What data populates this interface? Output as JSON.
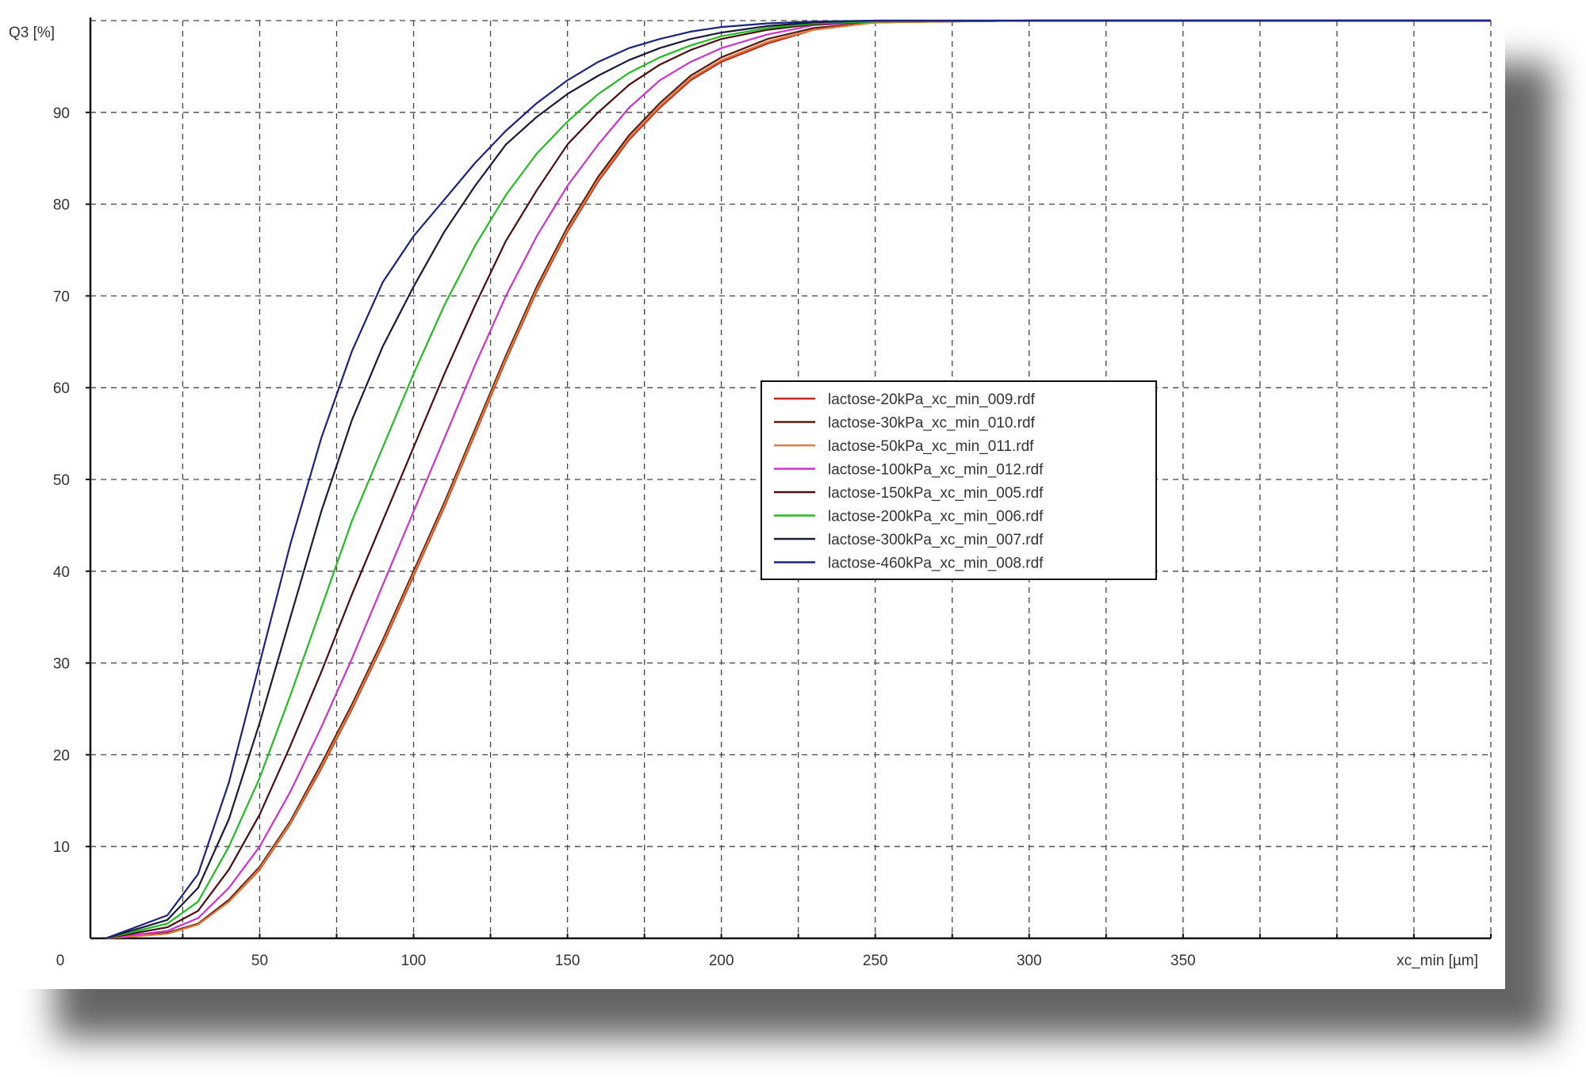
{
  "chart_data": {
    "type": "line",
    "title": "",
    "xlabel": "xc_min [µm]",
    "ylabel": "Q3 [%]",
    "xlim": [
      -5,
      450
    ],
    "ylim": [
      0,
      100
    ],
    "x_ticks": [
      0,
      50,
      100,
      150,
      200,
      250,
      300,
      350
    ],
    "x_tick_labels": [
      "0",
      "50",
      "100",
      "150",
      "200",
      "250",
      "300",
      "350"
    ],
    "y_ticks": [
      10,
      20,
      30,
      40,
      50,
      60,
      70,
      80,
      90
    ],
    "y_tick_labels": [
      "10",
      "20",
      "30",
      "40",
      "50",
      "60",
      "70",
      "80",
      "90"
    ],
    "x_gridlines": [
      25,
      50,
      75,
      100,
      125,
      150,
      175,
      200,
      225,
      250,
      275,
      300,
      325,
      350,
      375,
      400,
      425,
      450
    ],
    "grid": true,
    "legend_position": "center-right",
    "series": [
      {
        "name": "lactose-20kPa_xc_min_009.rdf",
        "color": "#c0281c",
        "x": [
          0,
          20,
          30,
          40,
          50,
          60,
          70,
          80,
          90,
          100,
          110,
          120,
          130,
          140,
          150,
          160,
          170,
          180,
          190,
          200,
          215,
          230,
          250,
          300,
          450
        ],
        "y": [
          0,
          0.5,
          1.5,
          4,
          7.5,
          12.5,
          18.5,
          25,
          32,
          39.5,
          47,
          55,
          63,
          70.5,
          77,
          82.5,
          87,
          90.5,
          93.5,
          95.5,
          97.5,
          99,
          99.8,
          100,
          100
        ]
      },
      {
        "name": "lactose-30kPa_xc_min_010.rdf",
        "color": "#5a1a0e",
        "x": [
          0,
          20,
          30,
          40,
          50,
          60,
          70,
          80,
          90,
          100,
          110,
          120,
          130,
          140,
          150,
          160,
          170,
          180,
          190,
          200,
          215,
          230,
          250,
          300,
          450
        ],
        "y": [
          0,
          0.6,
          1.6,
          4.2,
          7.8,
          12.8,
          19,
          25.5,
          32.5,
          40,
          47.5,
          55.5,
          63.5,
          71,
          77.5,
          83,
          87.5,
          91,
          94,
          96,
          98,
          99.2,
          99.8,
          100,
          100
        ]
      },
      {
        "name": "lactose-50kPa_xc_min_011.rdf",
        "color": "#e07a3a",
        "x": [
          0,
          20,
          30,
          40,
          50,
          60,
          70,
          80,
          90,
          100,
          110,
          120,
          130,
          140,
          150,
          160,
          170,
          180,
          190,
          200,
          215,
          230,
          250,
          300,
          450
        ],
        "y": [
          0,
          0.5,
          1.5,
          4,
          7.6,
          12.6,
          18.7,
          25.2,
          32.2,
          39.7,
          47.2,
          55.2,
          63.2,
          70.7,
          77.2,
          82.7,
          87.2,
          90.7,
          93.7,
          95.7,
          97.7,
          99,
          99.8,
          100,
          100
        ]
      },
      {
        "name": "lactose-100kPa_xc_min_012.rdf",
        "color": "#cc33cc",
        "x": [
          0,
          20,
          30,
          40,
          50,
          60,
          70,
          80,
          90,
          100,
          110,
          120,
          130,
          140,
          150,
          160,
          170,
          180,
          190,
          200,
          215,
          230,
          250,
          300,
          450
        ],
        "y": [
          0,
          0.8,
          2.2,
          5.5,
          10,
          16,
          23,
          30.5,
          38.5,
          46.5,
          54.5,
          62.5,
          70,
          76.5,
          82,
          86.5,
          90.5,
          93.5,
          95.5,
          97,
          98.5,
          99.5,
          99.9,
          100,
          100
        ]
      },
      {
        "name": "lactose-150kPa_xc_min_005.rdf",
        "color": "#4a0e0e",
        "x": [
          0,
          20,
          30,
          40,
          50,
          60,
          70,
          80,
          90,
          100,
          110,
          120,
          130,
          140,
          150,
          160,
          170,
          180,
          190,
          200,
          215,
          230,
          250,
          300,
          450
        ],
        "y": [
          0,
          1.2,
          3,
          7.5,
          13.5,
          21,
          29,
          37.5,
          45.5,
          53.5,
          61.5,
          69,
          76,
          81.5,
          86.5,
          90,
          93,
          95.2,
          96.8,
          98,
          99,
          99.6,
          99.9,
          100,
          100
        ]
      },
      {
        "name": "lactose-200kPa_xc_min_006.rdf",
        "color": "#22bb22",
        "x": [
          0,
          20,
          30,
          40,
          50,
          60,
          70,
          80,
          90,
          100,
          110,
          120,
          130,
          140,
          150,
          160,
          170,
          180,
          190,
          200,
          215,
          230,
          250,
          300,
          450
        ],
        "y": [
          0,
          1.6,
          4,
          10,
          17.5,
          26.5,
          36,
          45.5,
          53.5,
          61.5,
          69,
          75.5,
          81,
          85.5,
          89,
          92,
          94.3,
          96,
          97.3,
          98.3,
          99.2,
          99.7,
          99.9,
          100,
          100
        ]
      },
      {
        "name": "lactose-300kPa_xc_min_007.rdf",
        "color": "#1a1a3a",
        "x": [
          0,
          20,
          30,
          40,
          50,
          60,
          70,
          80,
          90,
          100,
          110,
          120,
          130,
          140,
          150,
          160,
          170,
          180,
          190,
          200,
          215,
          230,
          250,
          300,
          450
        ],
        "y": [
          0,
          2,
          5.5,
          13,
          23.5,
          35,
          46.5,
          56.5,
          64.5,
          71,
          77,
          82,
          86.5,
          89.5,
          92,
          94,
          95.7,
          97,
          98,
          98.7,
          99.4,
          99.8,
          100,
          100,
          100
        ]
      },
      {
        "name": "lactose-460kPa_xc_min_008.rdf",
        "color": "#1a237e",
        "x": [
          0,
          20,
          30,
          40,
          50,
          60,
          70,
          80,
          90,
          100,
          110,
          120,
          130,
          140,
          150,
          160,
          170,
          180,
          190,
          200,
          215,
          230,
          250,
          300,
          450
        ],
        "y": [
          0,
          2.5,
          7,
          17,
          30,
          43,
          54.5,
          64,
          71.5,
          76.5,
          80.5,
          84.5,
          88,
          91,
          93.5,
          95.5,
          97,
          98,
          98.8,
          99.3,
          99.7,
          99.9,
          100,
          100,
          100
        ]
      }
    ]
  }
}
